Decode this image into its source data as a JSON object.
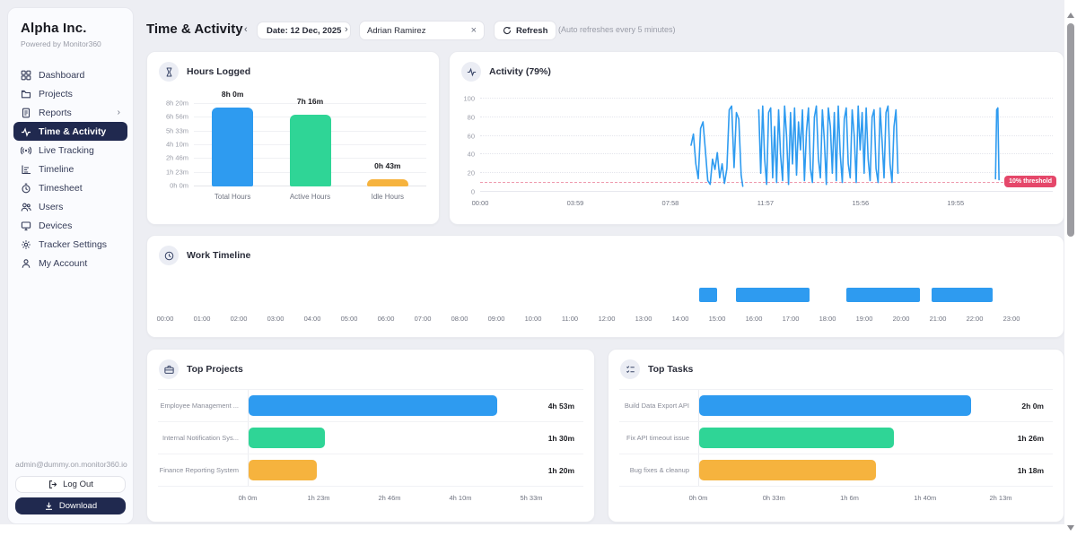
{
  "sidebar": {
    "brand": "Alpha Inc.",
    "tagline": "Powered by Monitor360",
    "items": [
      {
        "label": "Dashboard",
        "icon": "dashboard-grid-icon",
        "active": false
      },
      {
        "label": "Projects",
        "icon": "projects-folder-icon",
        "active": false
      },
      {
        "label": "Reports",
        "icon": "reports-document-icon",
        "active": false,
        "caret": "›"
      },
      {
        "label": "Time & Activity",
        "icon": "pulse-icon",
        "active": true
      },
      {
        "label": "Live Tracking",
        "icon": "broadcast-icon",
        "active": false
      },
      {
        "label": "Timeline",
        "icon": "timeline-chart-icon",
        "active": false
      },
      {
        "label": "Timesheet",
        "icon": "stopwatch-icon",
        "active": false
      },
      {
        "label": "Users",
        "icon": "users-icon",
        "active": false
      },
      {
        "label": "Devices",
        "icon": "monitor-icon",
        "active": false
      },
      {
        "label": "Tracker Settings",
        "icon": "gear-icon",
        "active": false
      },
      {
        "label": "My Account",
        "icon": "person-icon",
        "active": false
      }
    ],
    "email": "admin@dummy.on.monitor360.io",
    "logout_label": "Log Out",
    "download_label": "Download"
  },
  "header": {
    "title": "Time & Activity",
    "prev_chevron": "‹",
    "next_chevron": "›",
    "date_label": "Date: 12 Dec, 2025",
    "person": "Adrian Ramirez",
    "clear_x": "×",
    "refresh_label": "Refresh",
    "auto_note": "(Auto refreshes every 5 minutes)"
  },
  "colors": {
    "blue": "#2e9bf0",
    "green": "#2fd596",
    "orange": "#f6b33e",
    "red": "#e5476a",
    "navy": "#20294f"
  },
  "chart_data": [
    {
      "id": "hours",
      "type": "bar",
      "title": "Hours Logged",
      "categories": [
        "Total Hours",
        "Active Hours",
        "Idle Hours"
      ],
      "values_minutes": [
        480,
        436,
        43
      ],
      "value_labels": [
        "8h 0m",
        "7h 16m",
        "0h 43m"
      ],
      "bar_colors": [
        "#2e9bf0",
        "#2fd596",
        "#f6b33e"
      ],
      "y_ticks": [
        "0h 0m",
        "1h 23m",
        "2h 46m",
        "4h 10m",
        "5h 33m",
        "6h 56m",
        "8h 20m"
      ],
      "ymax_minutes": 500,
      "grid": true
    },
    {
      "id": "activity",
      "type": "line",
      "title": "Activity (79%)",
      "line_color": "#2e9bf0",
      "ylim": [
        0,
        100
      ],
      "y_ticks": [
        0,
        20,
        40,
        60,
        80,
        100
      ],
      "x_total_minutes": 1439,
      "x_ticks": [
        {
          "minute": 0,
          "label": "00:00"
        },
        {
          "minute": 239,
          "label": "03:59"
        },
        {
          "minute": 478,
          "label": "07:58"
        },
        {
          "minute": 717,
          "label": "11:57"
        },
        {
          "minute": 956,
          "label": "15:56"
        },
        {
          "minute": 1195,
          "label": "19:55"
        }
      ],
      "threshold": {
        "value": 10,
        "label": "10% threshold",
        "color": "#e5476a"
      },
      "segments": [
        [
          [
            530,
            50
          ],
          [
            536,
            62
          ],
          [
            542,
            30
          ],
          [
            548,
            14
          ],
          [
            554,
            68
          ],
          [
            560,
            75
          ],
          [
            566,
            45
          ],
          [
            572,
            12
          ],
          [
            578,
            8
          ],
          [
            584,
            35
          ],
          [
            590,
            24
          ],
          [
            596,
            42
          ],
          [
            602,
            15
          ],
          [
            608,
            30
          ],
          [
            614,
            9
          ],
          [
            620,
            25
          ],
          [
            626,
            88
          ],
          [
            632,
            92
          ],
          [
            638,
            26
          ],
          [
            644,
            85
          ],
          [
            650,
            78
          ],
          [
            656,
            18
          ],
          [
            660,
            6
          ]
        ],
        [
          [
            700,
            88
          ],
          [
            705,
            20
          ],
          [
            710,
            92
          ],
          [
            715,
            35
          ],
          [
            720,
            8
          ],
          [
            725,
            85
          ],
          [
            730,
            90
          ],
          [
            735,
            15
          ],
          [
            740,
            70
          ],
          [
            745,
            10
          ],
          [
            750,
            88
          ],
          [
            755,
            40
          ],
          [
            760,
            12
          ],
          [
            765,
            92
          ],
          [
            770,
            60
          ],
          [
            775,
            8
          ],
          [
            780,
            85
          ],
          [
            785,
            30
          ],
          [
            790,
            90
          ],
          [
            795,
            18
          ],
          [
            800,
            75
          ],
          [
            805,
            45
          ],
          [
            810,
            88
          ],
          [
            815,
            12
          ],
          [
            820,
            65
          ],
          [
            825,
            90
          ],
          [
            830,
            25
          ],
          [
            835,
            10
          ],
          [
            840,
            80
          ],
          [
            845,
            92
          ],
          [
            850,
            35
          ],
          [
            855,
            15
          ],
          [
            860,
            88
          ],
          [
            865,
            55
          ],
          [
            870,
            8
          ],
          [
            875,
            90
          ],
          [
            880,
            70
          ],
          [
            885,
            20
          ],
          [
            890,
            85
          ],
          [
            895,
            12
          ],
          [
            900,
            92
          ],
          [
            905,
            40
          ],
          [
            910,
            10
          ],
          [
            915,
            78
          ],
          [
            920,
            90
          ],
          [
            925,
            30
          ],
          [
            930,
            15
          ],
          [
            935,
            88
          ],
          [
            940,
            60
          ],
          [
            945,
            10
          ],
          [
            950,
            92
          ],
          [
            955,
            45
          ],
          [
            960,
            85
          ],
          [
            965,
            20
          ],
          [
            970,
            90
          ],
          [
            975,
            35
          ],
          [
            980,
            12
          ],
          [
            985,
            80
          ],
          [
            990,
            88
          ],
          [
            995,
            25
          ],
          [
            1000,
            10
          ],
          [
            1005,
            90
          ],
          [
            1010,
            55
          ],
          [
            1015,
            15
          ],
          [
            1020,
            85
          ],
          [
            1025,
            92
          ],
          [
            1030,
            30
          ],
          [
            1035,
            10
          ],
          [
            1040,
            70
          ],
          [
            1045,
            88
          ],
          [
            1050,
            20
          ]
        ],
        [
          [
            1295,
            14
          ],
          [
            1298,
            88
          ],
          [
            1301,
            90
          ],
          [
            1304,
            13
          ]
        ]
      ]
    },
    {
      "id": "timeline",
      "type": "timeline",
      "title": "Work Timeline",
      "bar_color": "#2e9bf0",
      "hour_labels": [
        "00:00",
        "01:00",
        "02:00",
        "03:00",
        "04:00",
        "05:00",
        "06:00",
        "07:00",
        "08:00",
        "09:00",
        "10:00",
        "11:00",
        "12:00",
        "13:00",
        "14:00",
        "15:00",
        "16:00",
        "17:00",
        "18:00",
        "19:00",
        "20:00",
        "21:00",
        "22:00",
        "23:00"
      ],
      "segments": [
        {
          "start": "14:30",
          "end": "15:00"
        },
        {
          "start": "15:30",
          "end": "17:30"
        },
        {
          "start": "18:30",
          "end": "20:30"
        },
        {
          "start": "20:50",
          "end": "22:30"
        }
      ]
    },
    {
      "id": "projects",
      "type": "hbar",
      "title": "Top Projects",
      "rows": [
        {
          "label": "Employee Management ...",
          "value_label": "4h 53m",
          "minutes": 293,
          "color": "#2e9bf0"
        },
        {
          "label": "Internal Notification Sys...",
          "value_label": "1h 30m",
          "minutes": 90,
          "color": "#2fd596"
        },
        {
          "label": "Finance Reporting System",
          "value_label": "1h 20m",
          "minutes": 80,
          "color": "#f6b33e"
        }
      ],
      "x_ticks": [
        "0h 0m",
        "1h 23m",
        "2h 46m",
        "4h 10m",
        "5h 33m"
      ],
      "xmax_minutes": 333
    },
    {
      "id": "tasks",
      "type": "hbar",
      "title": "Top Tasks",
      "rows": [
        {
          "label": "Build Data Export API",
          "value_label": "2h 0m",
          "minutes": 120,
          "color": "#2e9bf0"
        },
        {
          "label": "Fix API timeout issue",
          "value_label": "1h 26m",
          "minutes": 86,
          "color": "#2fd596"
        },
        {
          "label": "Bug fixes & cleanup",
          "value_label": "1h 18m",
          "minutes": 78,
          "color": "#f6b33e"
        }
      ],
      "x_ticks": [
        "0h 0m",
        "0h 33m",
        "1h 6m",
        "1h 40m",
        "2h 13m"
      ],
      "xmax_minutes": 133
    }
  ]
}
